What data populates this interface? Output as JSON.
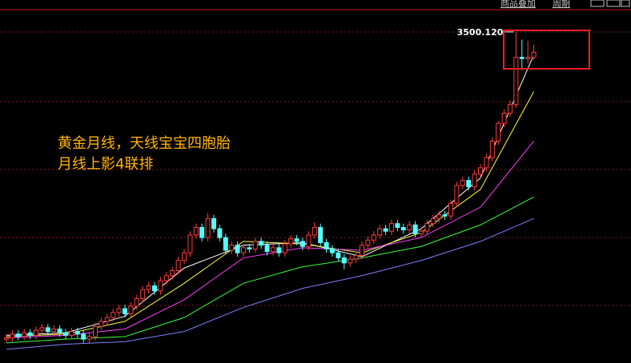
{
  "toolbar": {
    "overlay": "商品叠加",
    "period": "周期"
  },
  "chart_data": {
    "type": "candlestick",
    "annotations": [
      "黄金月线，天线宝宝四胞胎",
      "月线上影4联排"
    ],
    "max_label": "3500.120",
    "max_index": 86,
    "up_color": "#ff3c3c",
    "down_color": "#54ffff",
    "ylim": [
      892,
      3676
    ],
    "open": [
      1080,
      1090,
      1120,
      1100,
      1130,
      1110,
      1150,
      1170,
      1140,
      1160,
      1130,
      1110,
      1140,
      1120,
      1080,
      1100,
      1180,
      1220,
      1250,
      1290,
      1320,
      1280,
      1340,
      1400,
      1470,
      1500,
      1460,
      1540,
      1580,
      1620,
      1700,
      1760,
      1900,
      1960,
      1880,
      2030,
      1950,
      1880,
      1780,
      1820,
      1760,
      1800,
      1790,
      1850,
      1820,
      1770,
      1800,
      1760,
      1830,
      1870,
      1850,
      1810,
      1900,
      1960,
      1840,
      1790,
      1760,
      1720,
      1680,
      1710,
      1740,
      1820,
      1860,
      1900,
      1950,
      1930,
      1990,
      1960,
      1940,
      1980,
      1910,
      1930,
      1990,
      2030,
      2060,
      2050,
      2150,
      2290,
      2330,
      2280,
      2380,
      2430,
      2510,
      2640,
      2780,
      2860,
      2930,
      3300,
      3290,
      3300
    ],
    "close": [
      1090,
      1120,
      1100,
      1130,
      1110,
      1150,
      1170,
      1140,
      1160,
      1130,
      1110,
      1140,
      1120,
      1080,
      1100,
      1180,
      1220,
      1250,
      1290,
      1320,
      1280,
      1340,
      1400,
      1470,
      1500,
      1460,
      1540,
      1580,
      1620,
      1700,
      1760,
      1900,
      1960,
      1880,
      2030,
      1950,
      1880,
      1780,
      1820,
      1760,
      1800,
      1790,
      1850,
      1820,
      1770,
      1800,
      1760,
      1830,
      1870,
      1850,
      1810,
      1900,
      1960,
      1840,
      1790,
      1760,
      1720,
      1680,
      1710,
      1740,
      1820,
      1860,
      1900,
      1950,
      1930,
      1990,
      1960,
      1940,
      1980,
      1910,
      1930,
      1990,
      2030,
      2060,
      2050,
      2150,
      2290,
      2330,
      2280,
      2380,
      2430,
      2510,
      2640,
      2780,
      2860,
      2930,
      3300,
      3290,
      3300,
      3340
    ],
    "high": [
      1120,
      1150,
      1150,
      1160,
      1160,
      1180,
      1200,
      1200,
      1190,
      1190,
      1160,
      1170,
      1170,
      1150,
      1130,
      1210,
      1250,
      1280,
      1320,
      1350,
      1350,
      1370,
      1430,
      1500,
      1530,
      1530,
      1570,
      1610,
      1650,
      1730,
      1790,
      1930,
      1990,
      1990,
      2075,
      2060,
      1980,
      1910,
      1850,
      1850,
      1830,
      1830,
      1880,
      1880,
      1850,
      1830,
      1830,
      1860,
      1900,
      1900,
      1880,
      1930,
      2000,
      1990,
      1870,
      1820,
      1790,
      1750,
      1740,
      1770,
      1850,
      1890,
      1930,
      1980,
      1980,
      2020,
      2020,
      1990,
      2010,
      2010,
      1960,
      2020,
      2060,
      2090,
      2090,
      2180,
      2320,
      2360,
      2360,
      2410,
      2460,
      2540,
      2670,
      2800,
      2890,
      2960,
      3500.12,
      3440,
      3430,
      3400
    ],
    "low": [
      1050,
      1060,
      1070,
      1070,
      1080,
      1080,
      1120,
      1110,
      1110,
      1100,
      1080,
      1080,
      1090,
      1050,
      1050,
      1070,
      1150,
      1190,
      1220,
      1260,
      1250,
      1250,
      1310,
      1370,
      1440,
      1430,
      1430,
      1510,
      1550,
      1590,
      1670,
      1730,
      1870,
      1850,
      1850,
      1920,
      1850,
      1750,
      1750,
      1730,
      1730,
      1760,
      1760,
      1790,
      1740,
      1740,
      1730,
      1730,
      1800,
      1820,
      1780,
      1780,
      1870,
      1810,
      1760,
      1730,
      1690,
      1630,
      1650,
      1680,
      1710,
      1790,
      1830,
      1870,
      1900,
      1900,
      1930,
      1910,
      1910,
      1880,
      1880,
      1900,
      1960,
      2000,
      2020,
      2020,
      2120,
      2260,
      2250,
      2250,
      2350,
      2400,
      2480,
      2610,
      2750,
      2830,
      2900,
      3200,
      3250,
      3280
    ],
    "ma_lines": [
      {
        "color": "#ffffff",
        "x": [
          0,
          10,
          20,
          30,
          40,
          50,
          60,
          70,
          80,
          89
        ],
        "values": [
          1110,
          1130,
          1260,
          1640,
          1820,
          1840,
          1730,
          1950,
          2350,
          3320
        ]
      },
      {
        "color": "#ffff3c",
        "x": [
          0,
          10,
          20,
          30,
          40,
          50,
          60,
          70,
          80,
          89
        ],
        "values": [
          1100,
          1120,
          1220,
          1520,
          1850,
          1830,
          1760,
          1920,
          2260,
          3030
        ]
      },
      {
        "color": "#ff3cff",
        "x": [
          0,
          10,
          20,
          30,
          40,
          50,
          60,
          70,
          80,
          89
        ],
        "values": [
          1090,
          1110,
          1160,
          1390,
          1720,
          1800,
          1780,
          1880,
          2120,
          2640
        ]
      },
      {
        "color": "#3cff3c",
        "x": [
          0,
          10,
          20,
          30,
          40,
          50,
          60,
          70,
          80,
          89
        ],
        "values": [
          1050,
          1080,
          1100,
          1250,
          1520,
          1650,
          1720,
          1810,
          1980,
          2200
        ]
      },
      {
        "color": "#8080ff",
        "x": [
          0,
          10,
          20,
          30,
          40,
          50,
          60,
          70,
          80,
          89
        ],
        "values": [
          1000,
          1040,
          1060,
          1140,
          1330,
          1480,
          1580,
          1700,
          1850,
          2030
        ]
      }
    ]
  }
}
